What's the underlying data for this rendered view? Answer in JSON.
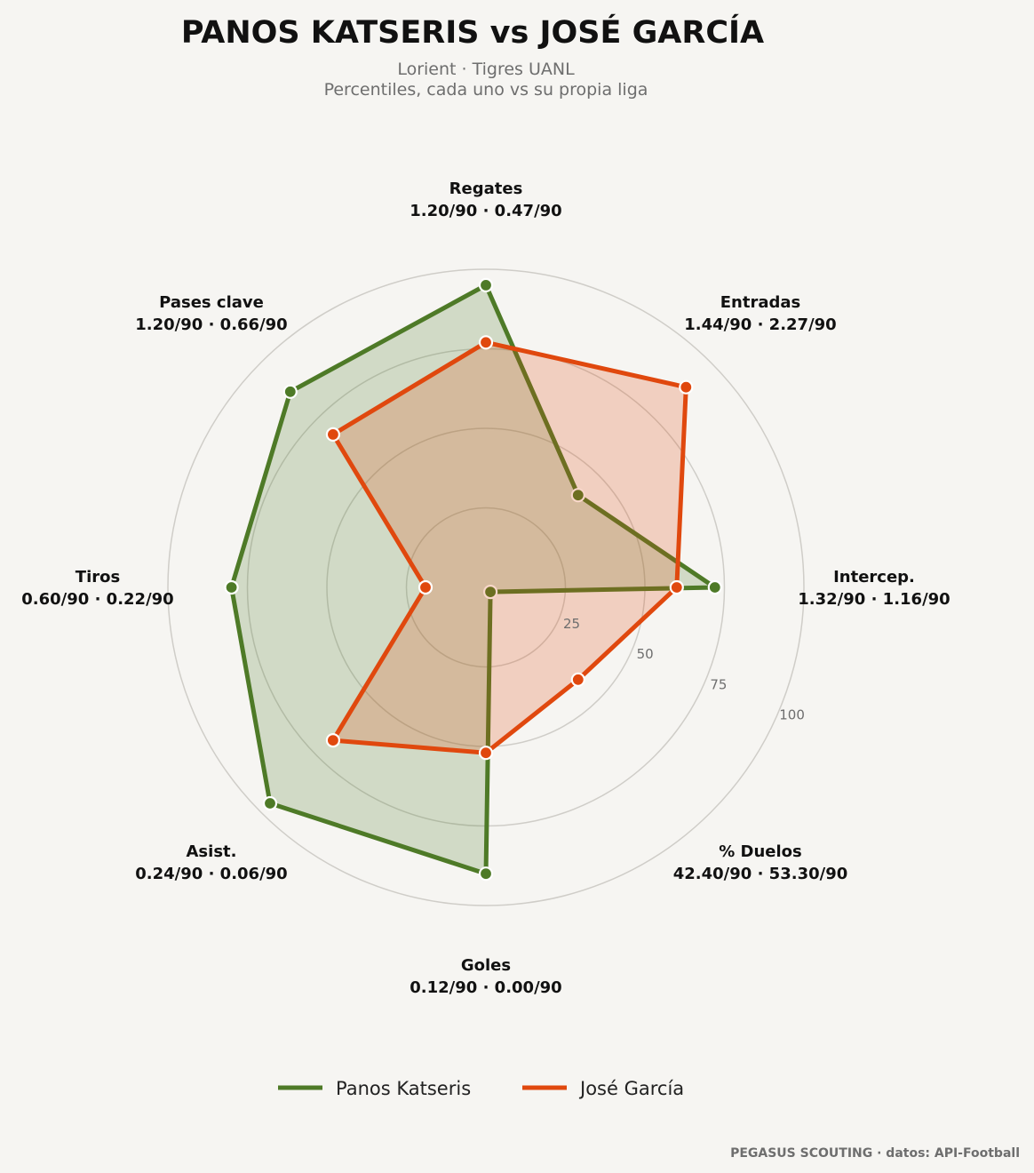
{
  "chart_data": {
    "type": "radar",
    "title": "PANOS KATSERIS  vs  JOSÉ GARCÍA",
    "subtitle_line1": "Lorient · Tigres UANL",
    "subtitle_line2": "Percentiles, cada uno vs su propia liga",
    "rlim": [
      0,
      100
    ],
    "rticks": [
      25,
      50,
      75,
      100
    ],
    "axes": [
      {
        "name": "Regates",
        "values": "1.20/90 · 0.47/90"
      },
      {
        "name": "Entradas",
        "values": "1.44/90 · 2.27/90"
      },
      {
        "name": "Intercep.",
        "values": "1.32/90 · 1.16/90"
      },
      {
        "name": "% Duelos",
        "values": "42.40/90 · 53.30/90"
      },
      {
        "name": "Goles",
        "values": "0.12/90 · 0.00/90"
      },
      {
        "name": "Asist.",
        "values": "0.24/90 · 0.06/90"
      },
      {
        "name": "Tiros",
        "values": "0.60/90 · 0.22/90"
      },
      {
        "name": "Pases clave",
        "values": "1.20/90 · 0.66/90"
      }
    ],
    "series": [
      {
        "name": "Panos Katseris",
        "color": "#4e7a27",
        "fill": "#4e7a27",
        "values": [
          95,
          41,
          72,
          2,
          90,
          96,
          80,
          87
        ]
      },
      {
        "name": "José García",
        "color": "#e0480e",
        "fill": "#e0480e",
        "values": [
          77,
          89,
          60,
          41,
          52,
          68,
          19,
          68
        ]
      }
    ],
    "legend": "bottom-center",
    "grid": true
  },
  "credit": "PEGASUS SCOUTING · datos: API-Football"
}
